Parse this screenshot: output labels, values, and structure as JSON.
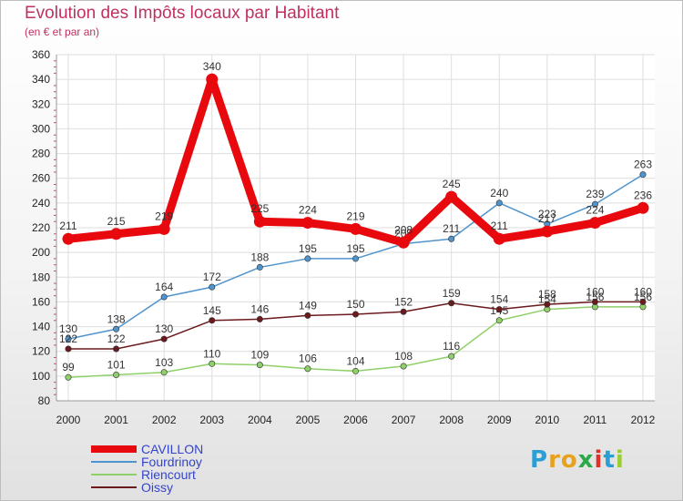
{
  "chart_data": {
    "type": "line",
    "title": "Evolution des Impôts locaux par Habitant",
    "subtitle": "(en € et par an)",
    "x": [
      "2000",
      "2001",
      "2002",
      "2003",
      "2004",
      "2005",
      "2006",
      "2007",
      "2008",
      "2009",
      "2010",
      "2011",
      "2012"
    ],
    "ylim": [
      80,
      360
    ],
    "yticks": [
      80,
      100,
      120,
      140,
      160,
      180,
      200,
      220,
      240,
      260,
      280,
      300,
      320,
      340,
      360
    ],
    "grid": true,
    "legend_position": "bottom-left",
    "series": [
      {
        "name": "CAVILLON",
        "color": "#e8090f",
        "values": [
          211,
          215,
          219,
          340,
          225,
          224,
          219,
          208,
          245,
          211,
          217,
          224,
          236
        ],
        "labels": [
          "211",
          "215",
          "219",
          "340",
          "225",
          "224",
          "219",
          "208",
          "245",
          "211",
          "217",
          "224",
          "236"
        ]
      },
      {
        "name": "Fourdrinoy",
        "color": "#4f94cd",
        "values": [
          130,
          138,
          164,
          172,
          188,
          195,
          195,
          207,
          211,
          240,
          223,
          239,
          263
        ],
        "labels": [
          "130",
          "138",
          "164",
          "172",
          "188",
          "195",
          "195",
          "207",
          "211",
          "240",
          "223",
          "239",
          "263"
        ]
      },
      {
        "name": "Riencourt",
        "color": "#8fd06a",
        "values": [
          99,
          101,
          103,
          110,
          109,
          106,
          104,
          108,
          116,
          145,
          154,
          156,
          156
        ],
        "labels": [
          "99",
          "101",
          "103",
          "110",
          "109",
          "106",
          "104",
          "108",
          "116",
          "145",
          "154",
          "156",
          "156"
        ]
      },
      {
        "name": "Oissy",
        "color": "#6b1a1d",
        "values": [
          122,
          122,
          130,
          145,
          146,
          149,
          150,
          152,
          159,
          154,
          158,
          160,
          160
        ],
        "labels": [
          "122",
          "122",
          "130",
          "145",
          "146",
          "149",
          "150",
          "152",
          "159",
          "154",
          "158",
          "160",
          "160"
        ]
      }
    ]
  },
  "brand": {
    "logo_text": "Proxiti"
  }
}
